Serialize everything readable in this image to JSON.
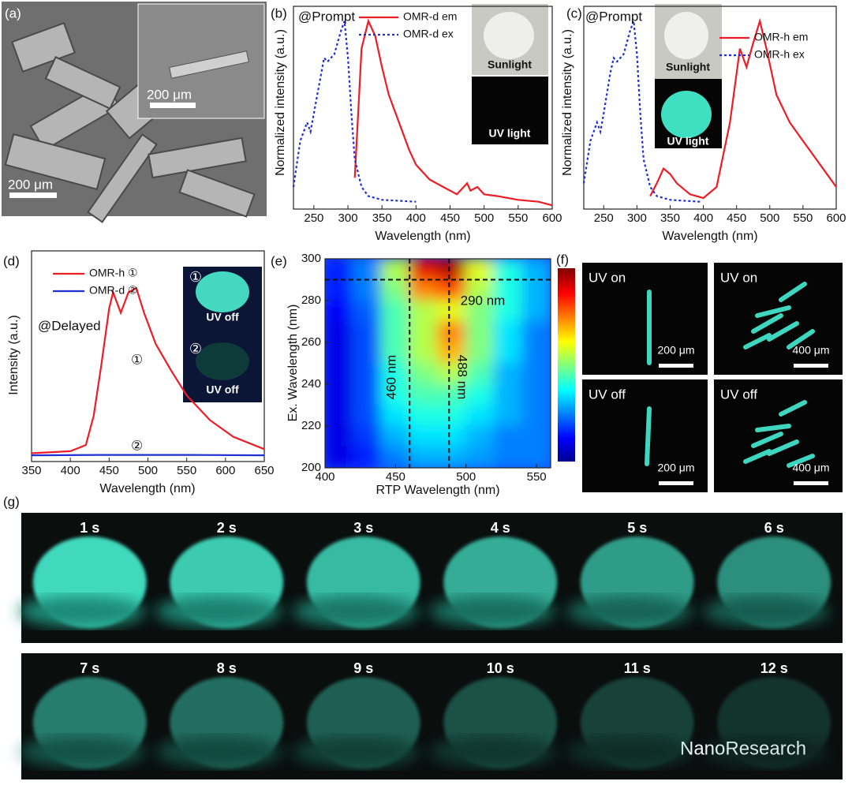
{
  "panels": {
    "a": {
      "label": "(a)",
      "inset_scale": "200 μm",
      "scale": "200 μm"
    },
    "f": {
      "label": "(f)",
      "frames": [
        {
          "title": "UV on",
          "scale": "200 μm"
        },
        {
          "title": "UV on",
          "scale": "400 μm"
        },
        {
          "title": "UV off",
          "scale": "200 μm"
        },
        {
          "title": "UV off",
          "scale": "400 μm"
        }
      ]
    },
    "g": {
      "label": "(g)",
      "times": [
        "1 s",
        "2 s",
        "3 s",
        "4 s",
        "5 s",
        "6 s",
        "7 s",
        "8 s",
        "9 s",
        "10 s",
        "11 s",
        "12 s"
      ]
    },
    "watermark": "NanoResearch"
  },
  "chart_data": [
    {
      "type": "line",
      "panel_label": "(b)",
      "annotations": [
        "@Prompt"
      ],
      "inset_labels": [
        "Sunlight",
        "UV light"
      ],
      "xlabel": "Wavelength (nm)",
      "ylabel": "Normalized intensity (a.u.)",
      "xlim": [
        220,
        600
      ],
      "ylim": [
        -0.02,
        1.08
      ],
      "xticks": [
        250,
        300,
        350,
        400,
        450,
        500,
        550,
        600
      ],
      "series": [
        {
          "name": "OMR-d em",
          "color": "#ee1c25",
          "line_style": "solid",
          "x": [
            310,
            315,
            320,
            330,
            340,
            350,
            360,
            375,
            390,
            400,
            420,
            440,
            460,
            475,
            480,
            490,
            500,
            520,
            550,
            580,
            600
          ],
          "values": [
            0.15,
            0.5,
            0.85,
            1.0,
            0.92,
            0.75,
            0.6,
            0.45,
            0.3,
            0.22,
            0.14,
            0.1,
            0.06,
            0.12,
            0.08,
            0.1,
            0.06,
            0.05,
            0.03,
            0.02,
            0.0
          ]
        },
        {
          "name": "OMR-d ex",
          "color": "#1f2fd6",
          "line_style": "dotted",
          "x": [
            220,
            230,
            240,
            245,
            250,
            260,
            265,
            270,
            280,
            290,
            295,
            300,
            305,
            310,
            320,
            330,
            350,
            400
          ],
          "values": [
            0.1,
            0.35,
            0.45,
            0.4,
            0.5,
            0.7,
            0.8,
            0.78,
            0.82,
            0.95,
            1.0,
            0.8,
            0.5,
            0.25,
            0.1,
            0.05,
            0.03,
            0.02
          ]
        }
      ]
    },
    {
      "type": "line",
      "panel_label": "(c)",
      "annotations": [
        "@Prompt"
      ],
      "inset_labels": [
        "Sunlight",
        "UV light"
      ],
      "xlabel": "Wavelength (nm)",
      "ylabel": "Normalized intensity (a.u.)",
      "xlim": [
        220,
        600
      ],
      "ylim": [
        -0.02,
        1.08
      ],
      "xticks": [
        250,
        300,
        350,
        400,
        450,
        500,
        550,
        600
      ],
      "series": [
        {
          "name": "OMR-h em",
          "color": "#ee1c25",
          "line_style": "solid",
          "x": [
            320,
            330,
            340,
            350,
            360,
            380,
            400,
            420,
            440,
            455,
            465,
            475,
            485,
            495,
            510,
            530,
            550,
            570,
            590,
            600
          ],
          "values": [
            0.05,
            0.12,
            0.2,
            0.17,
            0.12,
            0.06,
            0.04,
            0.1,
            0.45,
            0.85,
            0.75,
            0.88,
            1.0,
            0.85,
            0.6,
            0.45,
            0.35,
            0.25,
            0.15,
            0.1
          ]
        },
        {
          "name": "OMR-h ex",
          "color": "#1f2fd6",
          "line_style": "dotted",
          "x": [
            220,
            230,
            240,
            245,
            250,
            260,
            265,
            270,
            280,
            290,
            295,
            300,
            305,
            310,
            320,
            330,
            350,
            395
          ],
          "values": [
            0.12,
            0.35,
            0.45,
            0.4,
            0.5,
            0.72,
            0.8,
            0.78,
            0.82,
            0.95,
            1.0,
            0.82,
            0.5,
            0.25,
            0.1,
            0.05,
            0.03,
            0.02
          ]
        }
      ]
    },
    {
      "type": "line",
      "panel_label": "(d)",
      "annotations": [
        "@Delayed",
        "①",
        "②"
      ],
      "inset_labels": [
        "①",
        "UV off",
        "②",
        "UV off"
      ],
      "xlabel": "Wavelength (nm)",
      "ylabel": "Intensity (a.u.)",
      "xlim": [
        350,
        650
      ],
      "ylim": [
        -0.02,
        1.0
      ],
      "xticks": [
        350,
        400,
        450,
        500,
        550,
        600,
        650
      ],
      "series": [
        {
          "name": "OMR-h ①",
          "color": "#ee1c25",
          "line_style": "solid",
          "x": [
            350,
            400,
            420,
            430,
            440,
            450,
            455,
            465,
            475,
            485,
            495,
            510,
            530,
            550,
            580,
            610,
            650
          ],
          "values": [
            0.02,
            0.03,
            0.06,
            0.2,
            0.45,
            0.72,
            0.8,
            0.7,
            0.8,
            0.82,
            0.7,
            0.55,
            0.42,
            0.3,
            0.18,
            0.1,
            0.04
          ]
        },
        {
          "name": "OMR-d ②",
          "color": "#1f2fd6",
          "line_style": "solid",
          "x": [
            350,
            450,
            550,
            650
          ],
          "values": [
            0.01,
            0.012,
            0.012,
            0.01
          ]
        }
      ]
    },
    {
      "type": "heatmap",
      "panel_label": "(e)",
      "annotations": [
        "290 nm",
        "460 nm",
        "488 nm"
      ],
      "xlabel": "RTP Wavelength (nm)",
      "ylabel": "Ex. Wavelength (nm)",
      "xlim": [
        400,
        560
      ],
      "ylim": [
        200,
        300
      ],
      "xticks": [
        400,
        450,
        500,
        550
      ],
      "yticks": [
        200,
        220,
        240,
        260,
        280,
        300
      ],
      "reference_lines": {
        "x": [
          460,
          488
        ],
        "y": [
          290
        ]
      },
      "x": [
        410,
        430,
        450,
        470,
        490,
        510,
        530,
        550
      ],
      "y": [
        295,
        285,
        275,
        265,
        255,
        245,
        235,
        225,
        215,
        205
      ],
      "z": [
        [
          0.15,
          0.25,
          0.55,
          0.9,
          0.95,
          0.6,
          0.4,
          0.3
        ],
        [
          0.15,
          0.25,
          0.5,
          0.75,
          0.8,
          0.55,
          0.4,
          0.3
        ],
        [
          0.12,
          0.22,
          0.45,
          0.55,
          0.6,
          0.5,
          0.4,
          0.3
        ],
        [
          0.1,
          0.2,
          0.45,
          0.55,
          0.75,
          0.5,
          0.35,
          0.25
        ],
        [
          0.1,
          0.2,
          0.45,
          0.55,
          0.7,
          0.5,
          0.35,
          0.25
        ],
        [
          0.1,
          0.2,
          0.4,
          0.5,
          0.55,
          0.45,
          0.3,
          0.25
        ],
        [
          0.1,
          0.2,
          0.4,
          0.45,
          0.45,
          0.4,
          0.3,
          0.25
        ],
        [
          0.1,
          0.2,
          0.35,
          0.4,
          0.4,
          0.35,
          0.3,
          0.25
        ],
        [
          0.1,
          0.18,
          0.3,
          0.35,
          0.35,
          0.3,
          0.25,
          0.25
        ],
        [
          0.1,
          0.15,
          0.25,
          0.3,
          0.3,
          0.28,
          0.25,
          0.25
        ]
      ]
    }
  ]
}
